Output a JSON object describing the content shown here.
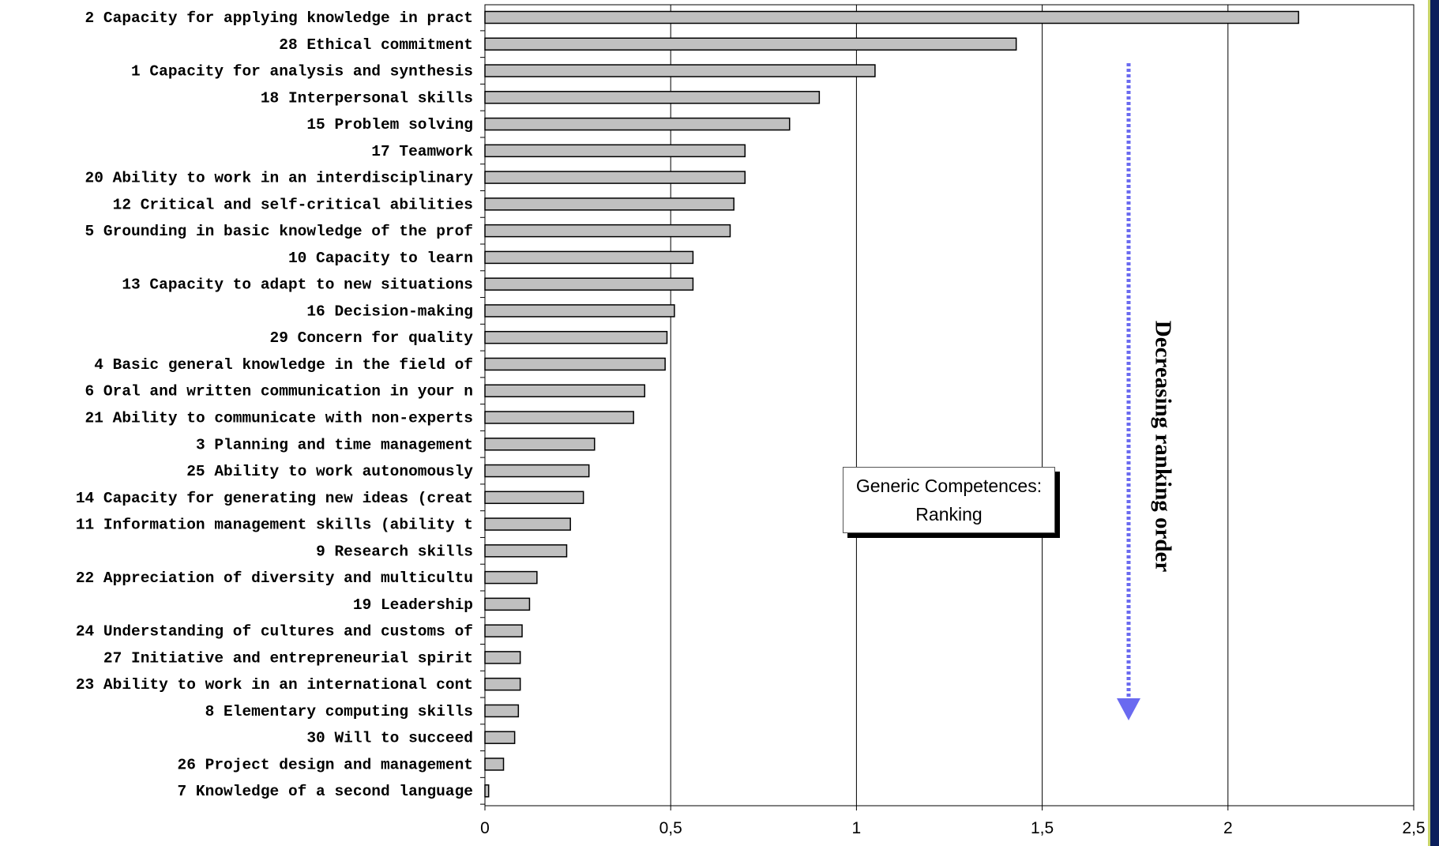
{
  "chart_data": {
    "type": "bar",
    "orientation": "horizontal",
    "title": "Generic Competences:",
    "subtitle": "Ranking",
    "annotation": "Decreasing ranking order",
    "xlim": [
      0,
      2.5
    ],
    "x_ticks": [
      "0",
      "0,5",
      "1",
      "1,5",
      "2",
      "2,5"
    ],
    "grid": "vertical major gridlines",
    "bar_color": "#c0c0c0",
    "bar_edge_color": "#000000",
    "arrow_color": "#6a6af0",
    "categories": [
      "2 Capacity for applying knowledge in pract",
      "28 Ethical commitment",
      "1 Capacity for analysis and synthesis",
      "18 Interpersonal skills",
      "15 Problem solving",
      "17 Teamwork",
      "20 Ability to work in an interdisciplinary",
      "12 Critical and self-critical abilities",
      "5 Grounding in basic knowledge of the prof",
      "10 Capacity to learn",
      "13 Capacity to adapt to new situations",
      "16 Decision-making",
      "29 Concern for quality",
      "4 Basic general knowledge in the field of",
      "6 Oral and written communication in your n",
      "21 Ability to communicate with non-experts",
      "3 Planning and time management",
      "25 Ability to work autonomously",
      "14 Capacity for generating new ideas (creat",
      "11 Information management skills (ability t",
      "9 Research skills",
      "22 Appreciation of diversity and multicultu",
      "19 Leadership",
      "24 Understanding of cultures and customs of",
      "27 Initiative and entrepreneurial spirit",
      "23 Ability to work in an international cont",
      "8 Elementary computing skills",
      "30 Will to succeed",
      "26 Project design and management",
      "7 Knowledge of a second language"
    ],
    "values": [
      2.19,
      1.43,
      1.05,
      0.9,
      0.82,
      0.7,
      0.7,
      0.67,
      0.66,
      0.56,
      0.56,
      0.51,
      0.49,
      0.485,
      0.43,
      0.4,
      0.295,
      0.28,
      0.265,
      0.23,
      0.22,
      0.14,
      0.12,
      0.1,
      0.095,
      0.095,
      0.09,
      0.08,
      0.05,
      0.01
    ]
  }
}
